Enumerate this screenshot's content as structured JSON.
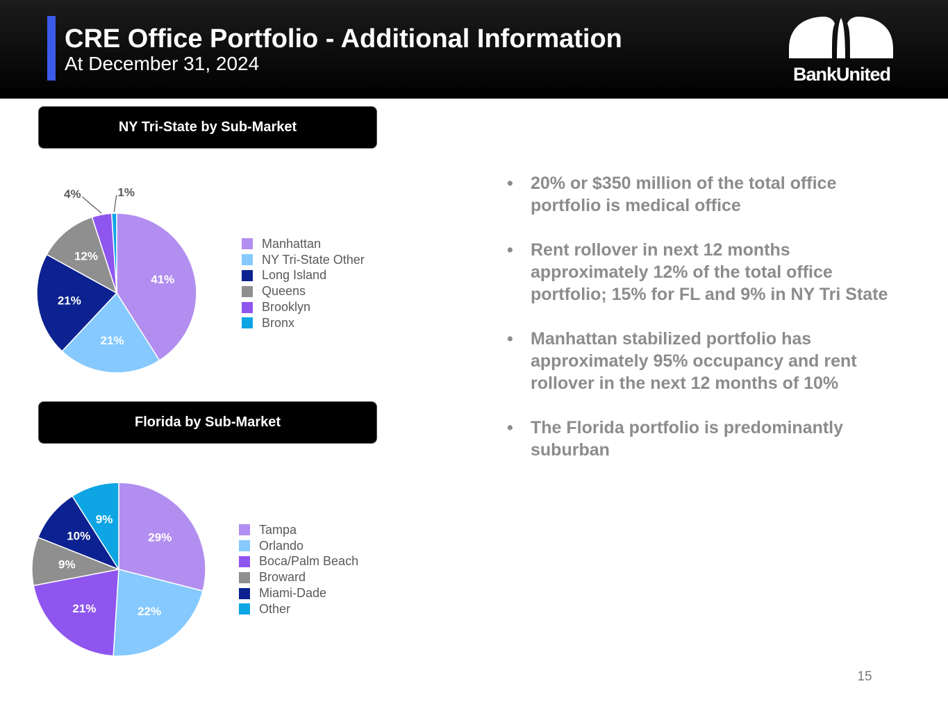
{
  "header": {
    "title": "CRE Office Portfolio - Additional Information",
    "subtitle": "At December 31, 2024",
    "logo_text": "BankUnited",
    "accent_color": "#3a5bea"
  },
  "chart_data": [
    {
      "type": "pie",
      "title": "NY Tri-State by Sub-Market",
      "series": [
        {
          "name": "Manhattan",
          "value": 41,
          "label": "41%",
          "color": "#b28ef0"
        },
        {
          "name": "NY Tri-State Other",
          "value": 21,
          "label": "21%",
          "color": "#85c9ff"
        },
        {
          "name": "Long Island",
          "value": 21,
          "label": "21%",
          "color": "#0c2290"
        },
        {
          "name": "Queens",
          "value": 12,
          "label": "12%",
          "color": "#8f8f8f"
        },
        {
          "name": "Brooklyn",
          "value": 4,
          "label": "4%",
          "color": "#8f55ef"
        },
        {
          "name": "Bronx",
          "value": 1,
          "label": "1%",
          "color": "#0ea5e4"
        }
      ],
      "legend_order": [
        "Manhattan",
        "NY Tri-State Other",
        "Long Island",
        "Queens",
        "Brooklyn",
        "Bronx"
      ],
      "legend": "right"
    },
    {
      "type": "pie",
      "title": "Florida by Sub-Market",
      "series": [
        {
          "name": "Tampa",
          "value": 29,
          "label": "29%",
          "color": "#b28ef0"
        },
        {
          "name": "Orlando",
          "value": 22,
          "label": "22%",
          "color": "#85c9ff"
        },
        {
          "name": "Boca/Palm Beach",
          "value": 21,
          "label": "21%",
          "color": "#8f55ef"
        },
        {
          "name": "Broward",
          "value": 9,
          "label": "9%",
          "color": "#8f8f8f"
        },
        {
          "name": "Miami-Dade",
          "value": 10,
          "label": "10%",
          "color": "#0c2290"
        },
        {
          "name": "Other",
          "value": 9,
          "label": "9%",
          "color": "#0ea5e4"
        }
      ],
      "legend_order": [
        "Tampa",
        "Orlando",
        "Boca/Palm Beach",
        "Broward",
        "Miami-Dade",
        "Other"
      ],
      "legend": "right"
    }
  ],
  "bullets": [
    "20% or $350 million of the total office portfolio is medical office",
    "Rent rollover in next 12 months approximately 12% of the total office portfolio; 15% for FL and 9% in NY Tri State",
    "Manhattan stabilized portfolio has approximately 95% occupancy and rent rollover in the next 12 months of 10%",
    "The Florida portfolio is predominantly suburban"
  ],
  "bullet_char": "•",
  "page_number": "15"
}
